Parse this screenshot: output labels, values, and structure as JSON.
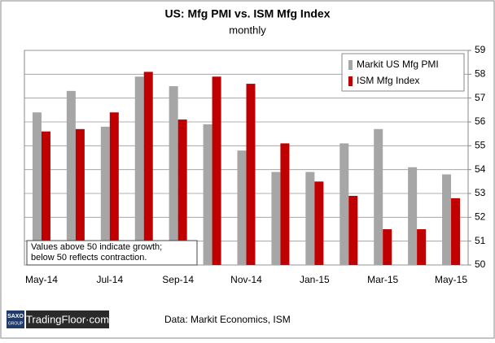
{
  "chart_data": {
    "type": "bar",
    "title": "US: Mfg PMI vs. ISM Mfg Index",
    "subtitle": "monthly",
    "categories": [
      "May-14",
      null,
      "Jul-14",
      null,
      "Sep-14",
      null,
      "Nov-14",
      null,
      "Jan-15",
      null,
      "Mar-15",
      null,
      "May-15"
    ],
    "series": [
      {
        "name": "Markit US Mfg PMI",
        "color": "#a6a6a6",
        "values": [
          56.4,
          57.3,
          55.8,
          57.9,
          57.5,
          55.9,
          54.8,
          53.9,
          53.9,
          55.1,
          55.7,
          54.1,
          53.8
        ]
      },
      {
        "name": "ISM Mfg Index",
        "color": "#c00000",
        "values": [
          55.6,
          55.7,
          56.4,
          58.1,
          56.1,
          57.9,
          57.6,
          55.1,
          53.5,
          52.9,
          51.5,
          51.5,
          52.8
        ]
      }
    ],
    "ylim": [
      50,
      59
    ],
    "yticks": [
      50,
      51,
      52,
      53,
      54,
      55,
      56,
      57,
      58,
      59
    ],
    "grid": true,
    "legend": "top-right",
    "annotation": [
      "Values above 50 indicate growth;",
      "below 50 reflects contraction."
    ],
    "source": "Data: Markit Economics, ISM"
  },
  "branding": {
    "logo_top": "SAXO",
    "logo_bottom": "GROUP",
    "site": "TradingFloor·com"
  }
}
